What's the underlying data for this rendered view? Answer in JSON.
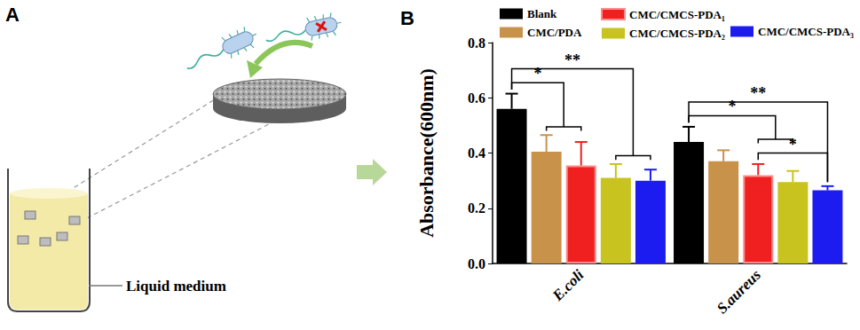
{
  "diagram": {
    "label": "A",
    "text": "Liquid medium"
  },
  "chart_data": {
    "type": "bar",
    "title": "B",
    "ylabel": "Absorbance(600nm)",
    "categories": [
      "E.coli",
      "S.aureus"
    ],
    "series": [
      {
        "name": "Blank",
        "color": "#000000",
        "values": [
          0.56,
          0.44
        ],
        "errors": [
          0.055,
          0.055
        ]
      },
      {
        "name": "CMC/PDA",
        "color": "#c8924a",
        "values": [
          0.405,
          0.37
        ],
        "errors": [
          0.06,
          0.04
        ]
      },
      {
        "name": "CMC/CMCS-PDA₁",
        "color": "#f02020",
        "values": [
          0.355,
          0.32
        ],
        "errors": [
          0.085,
          0.04
        ]
      },
      {
        "name": "CMC/CMCS-PDA₂",
        "color": "#c8c31e",
        "values": [
          0.31,
          0.295
        ],
        "errors": [
          0.05,
          0.04
        ]
      },
      {
        "name": "CMC/CMCS-PDA₃",
        "color": "#1c1cf0",
        "values": [
          0.3,
          0.265
        ],
        "errors": [
          0.04,
          0.015
        ]
      }
    ],
    "ylim": [
      0,
      0.8
    ],
    "yticks": [
      {
        "value": 0,
        "label": "0.0"
      },
      {
        "value": 0.2,
        "label": "0.2"
      },
      {
        "value": 0.4,
        "label": "0.4"
      },
      {
        "value": 0.6,
        "label": "0.6"
      },
      {
        "value": 0.8,
        "label": "0.8"
      }
    ],
    "grid": false,
    "legend": "top",
    "annotations": [
      {
        "category": "E.coli",
        "from": "Blank",
        "to": [
          "CMC/PDA",
          "CMC/CMCS-PDA₁"
        ],
        "text": "*"
      },
      {
        "category": "E.coli",
        "from": "Blank",
        "to": [
          "CMC/CMCS-PDA₂",
          "CMC/CMCS-PDA₃"
        ],
        "text": "**"
      },
      {
        "category": "S.aureus",
        "from": "CMC/CMCS-PDA₁",
        "to": [
          "CMC/CMCS-PDA₃"
        ],
        "text": "*"
      },
      {
        "category": "S.aureus",
        "from": "Blank",
        "to": [
          "CMC/CMCS-PDA₁",
          "CMC/CMCS-PDA₂"
        ],
        "text": "*"
      },
      {
        "category": "S.aureus",
        "from": "Blank",
        "to": [
          "CMC/CMCS-PDA₃"
        ],
        "text": "**"
      }
    ]
  }
}
